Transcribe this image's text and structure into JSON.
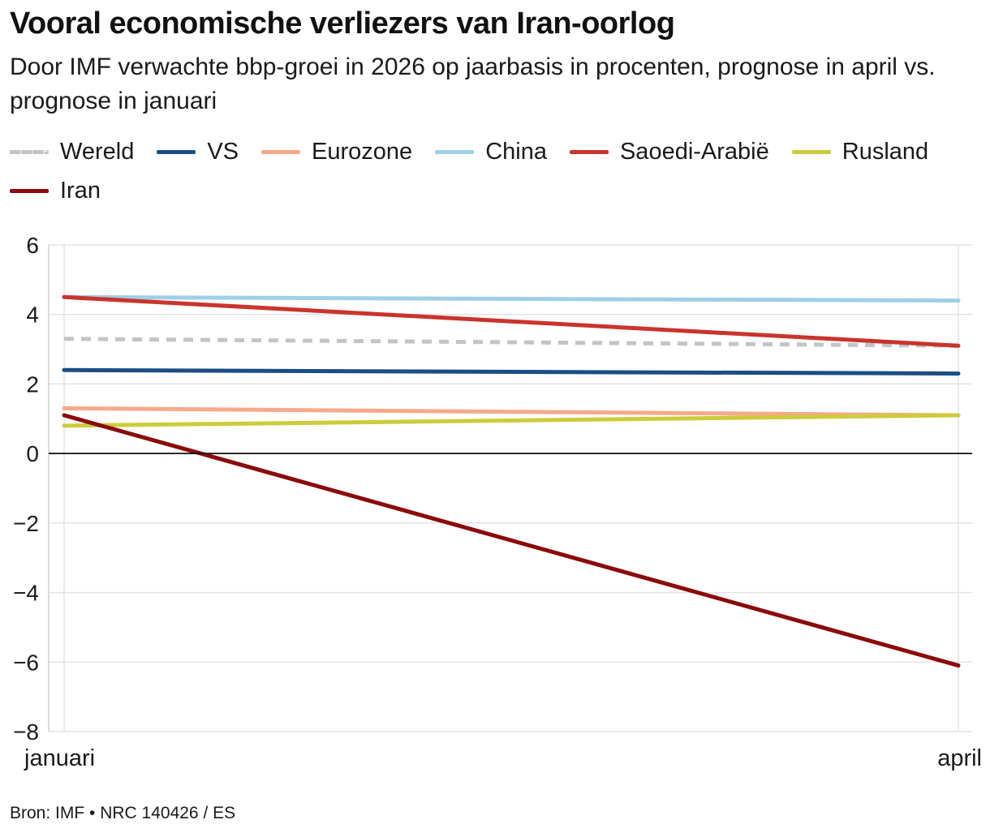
{
  "header": {
    "title": "Vooral economische verliezers van Iran-oorlog",
    "subtitle": "Door IMF verwachte bbp-groei in 2026 op jaarbasis in procenten, prognose in april vs. prognose in januari"
  },
  "chart_data": {
    "type": "line",
    "title": "Vooral economische verliezers van Iran-oorlog",
    "subtitle": "Door IMF verwachte bbp-groei in 2026 op jaarbasis in procenten, prognose in april vs. prognose in januari",
    "xlabel": "",
    "ylabel": "",
    "x": [
      "januari",
      "april"
    ],
    "ylim": [
      -8,
      6
    ],
    "yticks": [
      6,
      4,
      2,
      0,
      -2,
      -4,
      -6,
      -8
    ],
    "ytick_labels": [
      "6",
      "4",
      "2",
      "0",
      "−2",
      "−4",
      "−6",
      "−8"
    ],
    "grid": true,
    "legend_position": "top",
    "series": [
      {
        "name": "Wereld",
        "values": [
          3.3,
          3.1
        ],
        "color": "#c4c4c4",
        "dashed": true
      },
      {
        "name": "VS",
        "values": [
          2.4,
          2.3
        ],
        "color": "#1a4e85",
        "dashed": false
      },
      {
        "name": "Eurozone",
        "values": [
          1.3,
          1.1
        ],
        "color": "#f7a98b",
        "dashed": false
      },
      {
        "name": "China",
        "values": [
          4.5,
          4.4
        ],
        "color": "#9fd0e6",
        "dashed": false
      },
      {
        "name": "Saoedi-Arabië",
        "values": [
          4.5,
          3.1
        ],
        "color": "#c9342c",
        "dashed": false
      },
      {
        "name": "Rusland",
        "values": [
          0.8,
          1.1
        ],
        "color": "#cccc3b",
        "dashed": false
      },
      {
        "name": "Iran",
        "values": [
          1.1,
          -6.1
        ],
        "color": "#8b0a0a",
        "dashed": false
      }
    ]
  },
  "footer": {
    "source": "Bron: IMF • NRC 140426 / ES"
  }
}
